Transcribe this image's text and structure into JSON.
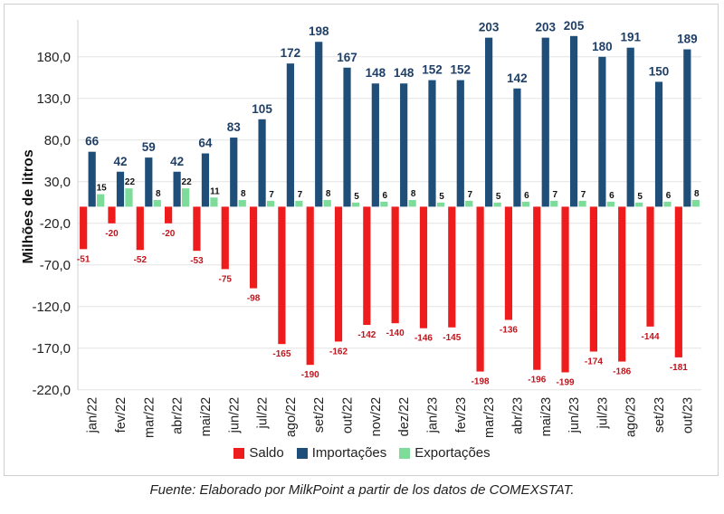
{
  "chart_data": {
    "type": "bar",
    "ylabel": "Milhões de litros",
    "ylim": [
      -220,
      220
    ],
    "yticks": [
      180,
      130,
      80,
      30,
      -20,
      -70,
      -120,
      -170,
      -220
    ],
    "ytick_labels": [
      "180,0",
      "130,0",
      "80,0",
      "30,0",
      "-20,0",
      "-70,0",
      "-120,0",
      "-170,0",
      "-220,0"
    ],
    "grid": "horizontal",
    "legend_position": "bottom",
    "categories": [
      "jan/22",
      "fev/22",
      "mar/22",
      "abr/22",
      "mai/22",
      "jun/22",
      "jul/22",
      "ago/22",
      "set/22",
      "out/22",
      "nov/22",
      "dez/22",
      "jan/23",
      "fev/23",
      "mar/23",
      "abr/23",
      "mai/23",
      "jun/23",
      "jul/23",
      "ago/23",
      "set/23",
      "out/23"
    ],
    "series": [
      {
        "name": "Saldo",
        "color": "#ee1c1c",
        "label_color": "#c0141c",
        "values": [
          -51,
          -20,
          -52,
          -20,
          -53,
          -75,
          -98,
          -165,
          -190,
          -162,
          -142,
          -140,
          -146,
          -145,
          -198,
          -136,
          -196,
          -199,
          -174,
          -186,
          -144,
          -181
        ]
      },
      {
        "name": "Importações",
        "color": "#1f4e79",
        "label_color": "#1f3f66",
        "values": [
          66,
          42,
          59,
          42,
          64,
          83,
          105,
          172,
          198,
          167,
          148,
          148,
          152,
          152,
          203,
          142,
          203,
          205,
          180,
          191,
          150,
          189
        ]
      },
      {
        "name": "Exportações",
        "color": "#7ddc9a",
        "label_color": "#111111",
        "values": [
          15,
          22,
          8,
          22,
          11,
          8,
          7,
          7,
          8,
          5,
          6,
          8,
          5,
          7,
          5,
          6,
          7,
          7,
          6,
          5,
          6,
          8
        ]
      }
    ]
  },
  "caption": "Fuente: Elaborado por MilkPoint a partir de los datos de COMEXSTAT."
}
